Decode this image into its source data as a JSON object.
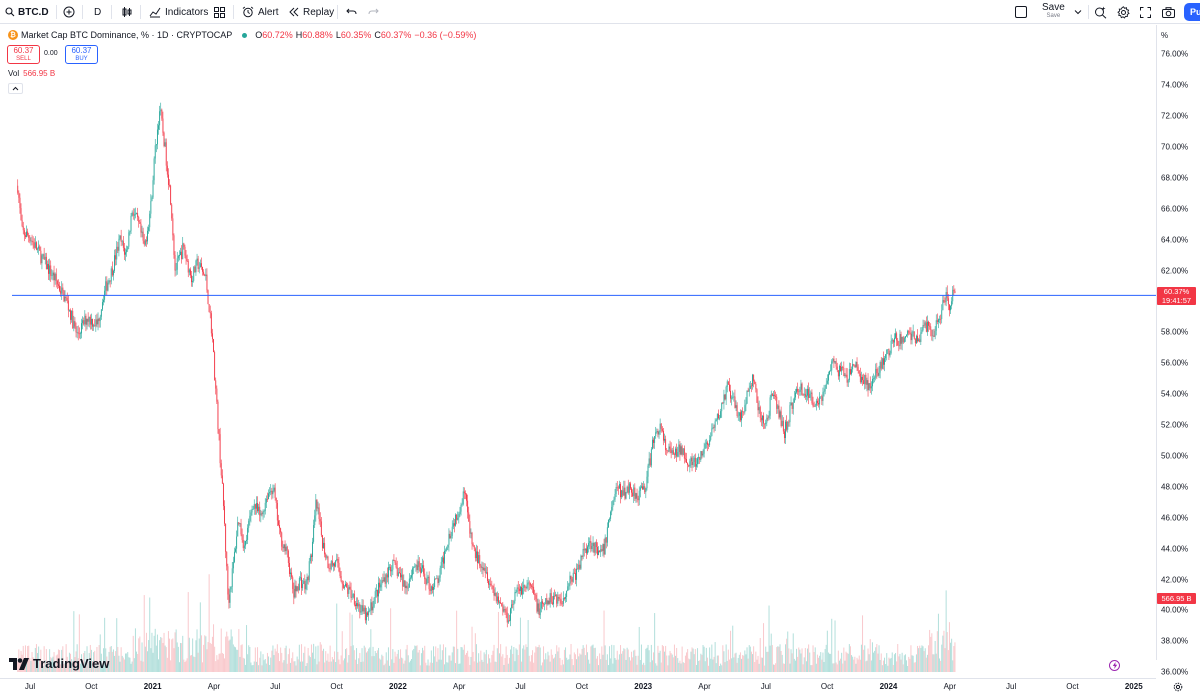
{
  "toolbar": {
    "symbol": "BTC.D",
    "interval": "D",
    "indicators_label": "Indicators",
    "alert_label": "Alert",
    "replay_label": "Replay",
    "save_label": "Save",
    "save_sub_label": "Save",
    "publish_label": "Pu"
  },
  "legend": {
    "title": "Market Cap BTC Dominance, % · 1D · CRYPTOCAP",
    "coin_icon_glyph": "₿",
    "open_key": "O",
    "open_value": "60.72%",
    "high_key": "H",
    "high_value": "60.88%",
    "low_key": "L",
    "low_value": "60.35%",
    "close_key": "C",
    "close_value": "60.37%",
    "change": "−0.36 (−0.59%)",
    "sell_price": "60.37",
    "sell_label": "SELL",
    "buy_price": "60.37",
    "buy_label": "BUY",
    "spread": "0.00",
    "vol_label": "Vol",
    "vol_value": "566.95 B"
  },
  "price_scale": {
    "unit_label": "%",
    "current_price": "60.37%",
    "countdown": "19:41:57",
    "volume_tag": "566.95 B"
  },
  "branding": {
    "logo_text": "TradingView"
  },
  "colors": {
    "up": "#26a69a",
    "down": "#f23645",
    "hline": "#2962ff",
    "vol_up": "#b2dfdb",
    "vol_down": "#f9c9cc",
    "accent": "#2962ff"
  },
  "chart_data": {
    "type": "candlestick",
    "symbol": "BTC.D",
    "title": "Market Cap BTC Dominance, % · 1D · CRYPTOCAP",
    "ylabel": "%",
    "ylim": [
      35.5,
      77.0
    ],
    "y_ticks": [
      "76.00%",
      "74.00%",
      "72.00%",
      "70.00%",
      "68.00%",
      "66.00%",
      "64.00%",
      "62.00%",
      "60.00%",
      "58.00%",
      "56.00%",
      "54.00%",
      "52.00%",
      "50.00%",
      "48.00%",
      "46.00%",
      "44.00%",
      "42.00%",
      "40.00%",
      "38.00%",
      "36.00%"
    ],
    "x_ticks": [
      {
        "label": "Jul",
        "month_index": 0
      },
      {
        "label": "Oct",
        "month_index": 3
      },
      {
        "label": "2021",
        "month_index": 6
      },
      {
        "label": "Apr",
        "month_index": 9
      },
      {
        "label": "Jul",
        "month_index": 12
      },
      {
        "label": "Oct",
        "month_index": 15
      },
      {
        "label": "2022",
        "month_index": 18
      },
      {
        "label": "Apr",
        "month_index": 21
      },
      {
        "label": "Jul",
        "month_index": 24
      },
      {
        "label": "Oct",
        "month_index": 27
      },
      {
        "label": "2023",
        "month_index": 30
      },
      {
        "label": "Apr",
        "month_index": 33
      },
      {
        "label": "Jul",
        "month_index": 36
      },
      {
        "label": "Oct",
        "month_index": 39
      },
      {
        "label": "2024",
        "month_index": 42
      },
      {
        "label": "Apr",
        "month_index": 45
      },
      {
        "label": "Jul",
        "month_index": 48
      },
      {
        "label": "Oct",
        "month_index": 51
      },
      {
        "label": "2025",
        "month_index": 54
      }
    ],
    "price_path": [
      [
        -0.6,
        67.5
      ],
      [
        -0.4,
        64.5
      ],
      [
        0,
        64.2
      ],
      [
        0.5,
        63.0
      ],
      [
        1.2,
        61.5
      ],
      [
        1.8,
        60.0
      ],
      [
        2.3,
        57.8
      ],
      [
        2.8,
        59.0
      ],
      [
        3.3,
        58.5
      ],
      [
        3.6,
        60.5
      ],
      [
        4.0,
        62.0
      ],
      [
        4.4,
        64.0
      ],
      [
        4.7,
        63.0
      ],
      [
        5.0,
        66.0
      ],
      [
        5.3,
        65.0
      ],
      [
        5.6,
        63.5
      ],
      [
        5.9,
        66.0
      ],
      [
        6.1,
        69.5
      ],
      [
        6.35,
        72.5
      ],
      [
        6.6,
        70.0
      ],
      [
        6.9,
        66.5
      ],
      [
        7.1,
        62.0
      ],
      [
        7.5,
        63.5
      ],
      [
        7.9,
        61.5
      ],
      [
        8.2,
        62.5
      ],
      [
        8.6,
        61.5
      ],
      [
        8.9,
        58.0
      ],
      [
        9.2,
        52.0
      ],
      [
        9.5,
        46.0
      ],
      [
        9.7,
        40.5
      ],
      [
        9.95,
        43.0
      ],
      [
        10.2,
        46.0
      ],
      [
        10.5,
        44.0
      ],
      [
        10.9,
        47.0
      ],
      [
        11.3,
        46.0
      ],
      [
        11.6,
        47.5
      ],
      [
        11.9,
        48.0
      ],
      [
        12.2,
        45.0
      ],
      [
        12.6,
        43.5
      ],
      [
        12.9,
        41.0
      ],
      [
        13.2,
        42.0
      ],
      [
        13.5,
        41.5
      ],
      [
        13.8,
        44.0
      ],
      [
        14.0,
        47.0
      ],
      [
        14.3,
        44.5
      ],
      [
        14.6,
        43.0
      ],
      [
        15.0,
        43.0
      ],
      [
        15.4,
        41.5
      ],
      [
        15.8,
        41.0
      ],
      [
        16.2,
        40.0
      ],
      [
        16.5,
        39.5
      ],
      [
        16.9,
        41.0
      ],
      [
        17.3,
        42.0
      ],
      [
        17.7,
        43.0
      ],
      [
        18.0,
        42.5
      ],
      [
        18.4,
        41.5
      ],
      [
        18.8,
        43.0
      ],
      [
        19.2,
        42.5
      ],
      [
        19.6,
        41.5
      ],
      [
        20.0,
        42.0
      ],
      [
        20.4,
        44.5
      ],
      [
        20.8,
        46.0
      ],
      [
        21.1,
        47.0
      ],
      [
        21.3,
        48.0
      ],
      [
        21.5,
        45.0
      ],
      [
        21.8,
        43.5
      ],
      [
        22.2,
        43.0
      ],
      [
        22.6,
        41.5
      ],
      [
        23.0,
        40.5
      ],
      [
        23.4,
        39.5
      ],
      [
        23.7,
        41.0
      ],
      [
        24.1,
        41.5
      ],
      [
        24.5,
        41.5
      ],
      [
        24.9,
        40.0
      ],
      [
        25.3,
        40.5
      ],
      [
        25.7,
        41.0
      ],
      [
        26.0,
        40.5
      ],
      [
        26.4,
        42.0
      ],
      [
        26.8,
        42.5
      ],
      [
        27.1,
        44.0
      ],
      [
        27.5,
        44.5
      ],
      [
        27.8,
        43.5
      ],
      [
        28.1,
        44.0
      ],
      [
        28.4,
        46.5
      ],
      [
        28.7,
        48.0
      ],
      [
        29.0,
        47.5
      ],
      [
        29.3,
        48.0
      ],
      [
        29.7,
        47.5
      ],
      [
        30.1,
        48.0
      ],
      [
        30.5,
        51.0
      ],
      [
        30.8,
        52.0
      ],
      [
        31.1,
        50.5
      ],
      [
        31.5,
        50.0
      ],
      [
        31.9,
        50.5
      ],
      [
        32.3,
        49.5
      ],
      [
        32.7,
        49.5
      ],
      [
        33.0,
        50.5
      ],
      [
        33.4,
        51.5
      ],
      [
        33.8,
        53.0
      ],
      [
        34.1,
        54.5
      ],
      [
        34.4,
        53.5
      ],
      [
        34.8,
        52.5
      ],
      [
        35.1,
        54.0
      ],
      [
        35.4,
        55.0
      ],
      [
        35.7,
        52.5
      ],
      [
        36.0,
        52.0
      ],
      [
        36.3,
        54.0
      ],
      [
        36.6,
        53.0
      ],
      [
        36.9,
        51.5
      ],
      [
        37.2,
        53.0
      ],
      [
        37.6,
        54.5
      ],
      [
        38.0,
        54.0
      ],
      [
        38.4,
        53.5
      ],
      [
        38.8,
        54.0
      ],
      [
        39.2,
        56.0
      ],
      [
        39.6,
        55.5
      ],
      [
        40.0,
        55.0
      ],
      [
        40.3,
        56.0
      ],
      [
        40.7,
        55.0
      ],
      [
        41.1,
        54.5
      ],
      [
        41.5,
        55.5
      ],
      [
        41.9,
        56.5
      ],
      [
        42.3,
        57.5
      ],
      [
        42.7,
        57.5
      ],
      [
        43.0,
        58.0
      ],
      [
        43.4,
        57.5
      ],
      [
        43.8,
        58.5
      ],
      [
        44.2,
        58.0
      ],
      [
        44.5,
        59.0
      ],
      [
        44.8,
        60.5
      ],
      [
        45.0,
        59.5
      ],
      [
        45.15,
        61.0
      ],
      [
        45.3,
        60.37
      ]
    ],
    "current_price": 60.37,
    "horizontal_line": 60.4,
    "last_volume": "566.95 B"
  }
}
